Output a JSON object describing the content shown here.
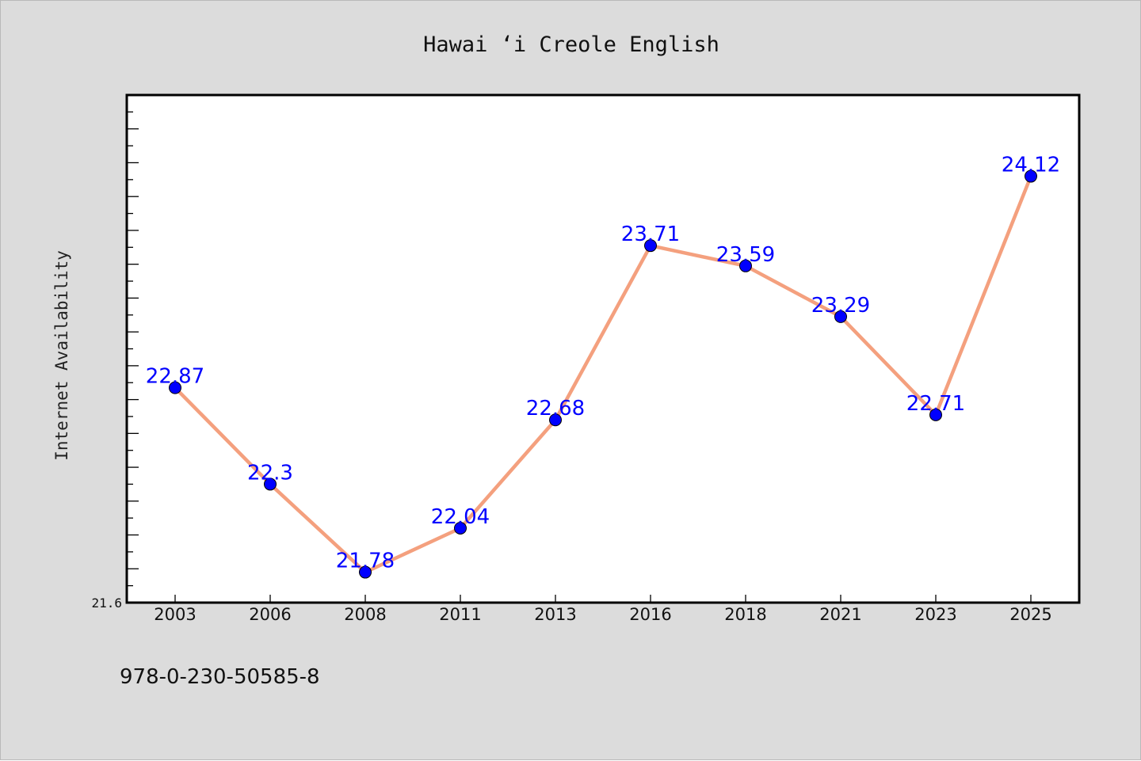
{
  "chart_data": {
    "type": "line",
    "title": "Hawai ‘i Creole English",
    "xlabel": "",
    "ylabel": "Internet Availability",
    "categories": [
      "2003",
      "2006",
      "2008",
      "2011",
      "2013",
      "2016",
      "2018",
      "2021",
      "2023",
      "2025"
    ],
    "series": [
      {
        "values": [
          22.87,
          22.3,
          21.78,
          22.04,
          22.68,
          23.71,
          23.59,
          23.29,
          22.71,
          24.12
        ]
      }
    ],
    "ylim": [
      21.6,
      24.6
    ],
    "ytick_labels": [
      "21.6"
    ],
    "grid": false,
    "legend": "none",
    "colors": {
      "line": "#f4a07e",
      "marker": "#0000ff",
      "label": "#0000ff",
      "plot_background": "#ffffff",
      "page_background": "#dcdcdc"
    }
  },
  "footer": {
    "code": "978-0-230-50585-8"
  }
}
